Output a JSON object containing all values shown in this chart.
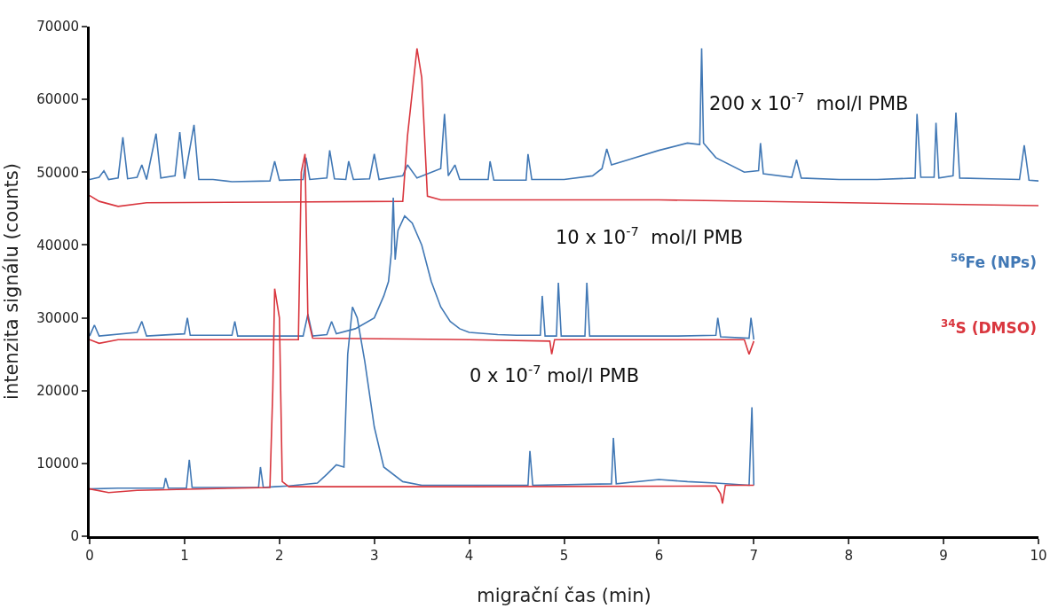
{
  "chart_data": {
    "type": "line",
    "xlabel": "migrační čas (min)",
    "ylabel": "intenzita signálu (counts)",
    "xlim": [
      0,
      10
    ],
    "xticks": [
      0,
      1,
      2,
      3,
      4,
      5,
      6,
      7,
      8,
      9,
      10
    ],
    "ylim": [
      0,
      70000
    ],
    "yticks": [
      0,
      10000,
      20000,
      30000,
      40000,
      50000,
      60000,
      70000
    ],
    "legend": false,
    "marker": "none",
    "line_style": "solid",
    "annotations": [
      "200 x 10$^{-7}$  mol/l PMB",
      "10 x 10$^{-7}$  mol/l PMB",
      "0 x 10$^{-7}$ mol/l PMB"
    ],
    "series": [
      {
        "name": "$^{56}$Fe (NPs)",
        "color": "#4178b5",
        "x": [
          0,
          0.1,
          0.15,
          0.2,
          0.3,
          0.35,
          0.4,
          0.5,
          0.55,
          0.6,
          0.7,
          0.75,
          0.9,
          0.95,
          1.0,
          1.1,
          1.15,
          1.3,
          1.5,
          1.9,
          1.95,
          2.0,
          2.25,
          2.28,
          2.32,
          2.5,
          2.53,
          2.58,
          2.7,
          2.73,
          2.78,
          2.95,
          3.0,
          3.05,
          3.3,
          3.35,
          3.45,
          3.7,
          3.74,
          3.78,
          3.85,
          3.9,
          4.2,
          4.22,
          4.26,
          4.6,
          4.62,
          4.66,
          5.0,
          5.3,
          5.4,
          5.45,
          5.5,
          5.7,
          6.0,
          6.3,
          6.43,
          6.45,
          6.47,
          6.6,
          6.9,
          7.05,
          7.07,
          7.1,
          7.4,
          7.45,
          7.5,
          7.9,
          8.3,
          8.7,
          8.72,
          8.76,
          8.9,
          8.92,
          8.95,
          9.1,
          9.13,
          9.17,
          9.5,
          9.8,
          9.85,
          9.9,
          10
        ],
        "values": [
          49000,
          49300,
          50200,
          49000,
          49200,
          54800,
          49100,
          49300,
          51000,
          49000,
          55300,
          49200,
          49500,
          55500,
          49100,
          56500,
          49000,
          49000,
          48700,
          48800,
          51500,
          48900,
          49000,
          52000,
          49000,
          49200,
          53000,
          49100,
          49000,
          51500,
          49000,
          49100,
          52500,
          49000,
          49500,
          51000,
          49200,
          50500,
          58000,
          49500,
          51000,
          49000,
          49000,
          51500,
          48900,
          48900,
          52500,
          49000,
          49000,
          49500,
          50500,
          53200,
          51000,
          51800,
          53000,
          54000,
          53800,
          67000,
          54000,
          52000,
          50000,
          50200,
          54000,
          49800,
          49300,
          51700,
          49200,
          49000,
          49000,
          49200,
          58000,
          49300,
          49300,
          56800,
          49200,
          49500,
          58200,
          49200,
          49100,
          49000,
          53700,
          48900,
          48800
        ]
      },
      {
        "name": "$^{34}$S (DMSO)",
        "color": "#d9363e",
        "x": [
          0,
          0.1,
          0.3,
          0.6,
          2.0,
          3.3,
          3.35,
          3.45,
          3.5,
          3.56,
          3.7,
          6,
          8,
          10
        ],
        "values": [
          46800,
          46000,
          45300,
          45800,
          45900,
          46000,
          55000,
          67000,
          63000,
          46700,
          46200,
          46200,
          45800,
          45400
        ]
      },
      {
        "color": "#4178b5",
        "x": [
          0,
          0.05,
          0.1,
          0.5,
          0.55,
          0.6,
          1.0,
          1.03,
          1.06,
          1.5,
          1.53,
          1.56,
          1.8,
          2.25,
          2.3,
          2.35,
          2.5,
          2.55,
          2.6,
          2.8,
          3.0,
          3.1,
          3.15,
          3.18,
          3.2,
          3.22,
          3.25,
          3.32,
          3.4,
          3.5,
          3.6,
          3.7,
          3.8,
          3.9,
          4.0,
          4.3,
          4.5,
          4.75,
          4.77,
          4.8,
          4.92,
          4.94,
          4.97,
          5.22,
          5.24,
          5.27,
          5.6,
          6.2,
          6.6,
          6.62,
          6.65,
          6.95,
          6.97,
          7.0
        ],
        "values": [
          27500,
          29000,
          27500,
          28000,
          29500,
          27500,
          27800,
          30000,
          27600,
          27600,
          29500,
          27500,
          27500,
          27500,
          30500,
          27500,
          27700,
          29500,
          27800,
          28500,
          30000,
          33000,
          35000,
          39000,
          46500,
          38000,
          42000,
          44000,
          43000,
          40000,
          35000,
          31500,
          29500,
          28500,
          28000,
          27700,
          27600,
          27600,
          33000,
          27500,
          27500,
          34800,
          27500,
          27500,
          34800,
          27500,
          27500,
          27500,
          27600,
          30000,
          27400,
          27200,
          30000,
          27000
        ]
      },
      {
        "color": "#d9363e",
        "x": [
          0,
          0.1,
          0.3,
          2.0,
          2.2,
          2.23,
          2.27,
          2.3,
          2.35,
          4.0,
          4.85,
          4.87,
          4.9,
          6.9,
          6.95,
          7.0
        ],
        "values": [
          27000,
          26500,
          27000,
          27000,
          27000,
          50000,
          52500,
          30000,
          27200,
          27000,
          26800,
          25000,
          27000,
          27000,
          25000,
          26800
        ]
      },
      {
        "color": "#4178b5",
        "x": [
          0,
          0.3,
          0.78,
          0.8,
          0.83,
          1.02,
          1.05,
          1.08,
          1.78,
          1.8,
          1.83,
          1.95,
          2.1,
          2.4,
          2.5,
          2.6,
          2.68,
          2.72,
          2.77,
          2.82,
          2.9,
          3.0,
          3.1,
          3.3,
          3.5,
          4.0,
          4.62,
          4.64,
          4.67,
          5.5,
          5.52,
          5.55,
          6.0,
          6.3,
          6.6,
          6.95,
          6.98,
          7.0
        ],
        "values": [
          6500,
          6600,
          6600,
          8000,
          6600,
          6600,
          10500,
          6700,
          6700,
          9500,
          6700,
          6800,
          6900,
          7300,
          8500,
          9800,
          9500,
          25000,
          31500,
          30000,
          24000,
          15000,
          9500,
          7500,
          7000,
          7000,
          7000,
          11700,
          7000,
          7200,
          13500,
          7200,
          7800,
          7500,
          7300,
          7000,
          17700,
          7000
        ]
      },
      {
        "color": "#d9363e",
        "x": [
          0,
          0.2,
          0.5,
          1.9,
          1.93,
          1.95,
          2.0,
          2.03,
          2.1,
          4,
          6.6,
          6.65,
          6.67,
          6.7,
          7.0
        ],
        "values": [
          6500,
          6000,
          6300,
          6700,
          20000,
          34000,
          30000,
          7500,
          6800,
          6800,
          6900,
          5800,
          4500,
          7000,
          7000
        ]
      }
    ]
  }
}
